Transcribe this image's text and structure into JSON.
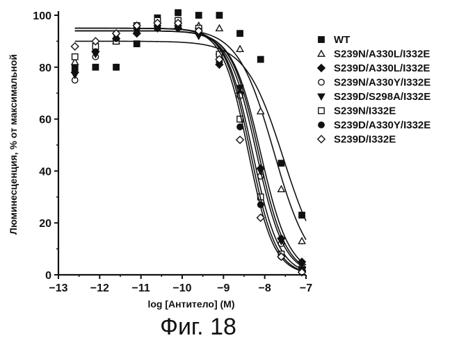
{
  "figure_caption": "Фиг. 18",
  "chart_data": {
    "type": "scatter",
    "xlabel": "log [Антитело] (M)",
    "ylabel": "Люминесценция, % от максимальной",
    "xlim": [
      -13,
      -7
    ],
    "ylim": [
      0,
      100
    ],
    "xticks": [
      -13,
      -12,
      -11,
      -10,
      -9,
      -8,
      -7
    ],
    "yticks": [
      0,
      20,
      40,
      60,
      80,
      100
    ],
    "legend_position": "right",
    "series": [
      {
        "name": "WT",
        "marker": "square-filled",
        "x": [
          -12.6,
          -12.1,
          -11.6,
          -11.1,
          -10.6,
          -10.1,
          -9.6,
          -9.1,
          -8.6,
          -8.1,
          -7.6,
          -7.1
        ],
        "y": [
          80,
          80,
          80,
          89,
          99,
          101,
          100,
          100,
          93,
          83,
          43,
          23
        ],
        "fit": {
          "top": 90,
          "bottom": 0,
          "logEC50": -7.55,
          "hill": 0.95
        }
      },
      {
        "name": "S239N/A330L/I332E",
        "marker": "triangle-open",
        "x": [
          -12.6,
          -12.1,
          -11.6,
          -11.1,
          -10.6,
          -10.1,
          -9.6,
          -9.1,
          -8.6,
          -8.1,
          -7.6,
          -7.1
        ],
        "y": [
          82,
          87,
          90,
          94,
          95,
          96,
          96,
          95,
          87,
          63,
          33,
          13
        ],
        "fit": {
          "top": 95,
          "bottom": 0,
          "logEC50": -7.78,
          "hill": 1.0
        }
      },
      {
        "name": "S239D/A330L/I332E",
        "marker": "diamond-filled",
        "x": [
          -12.6,
          -12.1,
          -11.6,
          -11.1,
          -10.6,
          -10.1,
          -9.6,
          -9.1,
          -8.6,
          -8.1,
          -7.6,
          -7.1
        ],
        "y": [
          78,
          86,
          91,
          93,
          95,
          95,
          93,
          81,
          70,
          41,
          14,
          5
        ],
        "fit": {
          "top": 94,
          "bottom": 0,
          "logEC50": -8.1,
          "hill": 1.25
        }
      },
      {
        "name": "S239N/A330Y/I332E",
        "marker": "circle-open",
        "x": [
          -12.6,
          -12.1,
          -11.6,
          -11.1,
          -10.6,
          -10.1,
          -9.6,
          -9.1,
          -8.6,
          -8.1,
          -7.6,
          -7.1
        ],
        "y": [
          75,
          84,
          91,
          95,
          96,
          96,
          93,
          82,
          69,
          38,
          12,
          3
        ],
        "fit": {
          "top": 94,
          "bottom": 0,
          "logEC50": -8.15,
          "hill": 1.3
        }
      },
      {
        "name": "S239D/S298A/I332E",
        "marker": "triangle-down-filled",
        "x": [
          -12.6,
          -12.1,
          -11.6,
          -11.1,
          -10.6,
          -10.1,
          -9.6,
          -9.1,
          -8.6,
          -8.1,
          -7.6,
          -7.1
        ],
        "y": [
          77,
          85,
          92,
          94,
          95,
          95,
          92,
          84,
          72,
          40,
          13,
          4
        ],
        "fit": {
          "top": 94,
          "bottom": 0,
          "logEC50": -8.2,
          "hill": 1.3
        }
      },
      {
        "name": "S239N/I332E",
        "marker": "square-open",
        "x": [
          -12.6,
          -12.1,
          -11.6,
          -11.1,
          -10.6,
          -10.1,
          -9.6,
          -9.1,
          -8.6,
          -8.1,
          -7.6,
          -7.1
        ],
        "y": [
          84,
          88,
          90,
          96,
          98,
          98,
          95,
          85,
          60,
          30,
          8,
          2
        ],
        "fit": {
          "top": 95,
          "bottom": 0,
          "logEC50": -8.3,
          "hill": 1.35
        }
      },
      {
        "name": "S239D/A330Y/I332E",
        "marker": "circle-filled",
        "x": [
          -12.6,
          -12.1,
          -11.6,
          -11.1,
          -10.6,
          -10.1,
          -9.6,
          -9.1,
          -8.6,
          -8.1,
          -7.6,
          -7.1
        ],
        "y": [
          79,
          86,
          91,
          95,
          96,
          96,
          94,
          82,
          57,
          27,
          7,
          2
        ],
        "fit": {
          "top": 95,
          "bottom": 0,
          "logEC50": -8.35,
          "hill": 1.4
        }
      },
      {
        "name": "S239D/I332E",
        "marker": "diamond-open",
        "x": [
          -12.6,
          -12.1,
          -11.6,
          -11.1,
          -10.6,
          -10.1,
          -9.6,
          -9.1,
          -8.6,
          -8.1,
          -7.6,
          -7.1
        ],
        "y": [
          88,
          90,
          93,
          96,
          97,
          97,
          94,
          83,
          52,
          22,
          7,
          1
        ],
        "fit": {
          "top": 95,
          "bottom": 0,
          "logEC50": -8.4,
          "hill": 1.4
        }
      }
    ]
  }
}
